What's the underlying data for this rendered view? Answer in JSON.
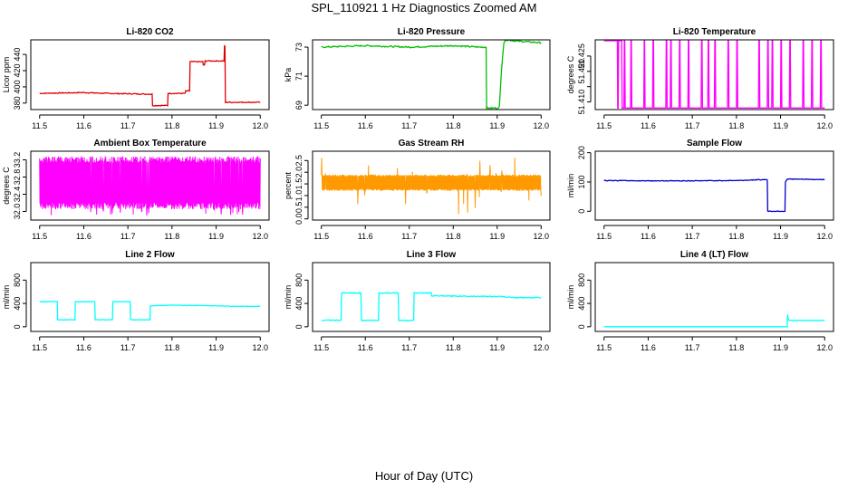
{
  "page": {
    "title": "SPL_110921 1 Hz Diagnostics Zoomed AM",
    "xlabel": "Hour of Day (UTC)"
  },
  "chart_data": [
    {
      "type": "line",
      "title": "Li-820 CO2",
      "ylabel": "Licor ppm",
      "color": "#e00000",
      "xlim": [
        11.48,
        12.02
      ],
      "ylim": [
        372,
        458
      ],
      "yticks": [
        380,
        400,
        420,
        440
      ],
      "noise": 0.6,
      "x": [
        11.5,
        11.55,
        11.6,
        11.65,
        11.7,
        11.755,
        11.756,
        11.79,
        11.791,
        11.83,
        11.831,
        11.84,
        11.841,
        11.87,
        11.871,
        11.874,
        11.875,
        11.918,
        11.919,
        11.92,
        11.921,
        11.96,
        12.0
      ],
      "y": [
        392,
        392.5,
        393,
        392,
        391.5,
        391,
        377,
        377,
        392,
        392,
        395,
        395,
        431,
        431,
        427,
        427,
        432,
        432,
        450,
        450,
        381,
        381,
        381
      ]
    },
    {
      "type": "line",
      "title": "Li-820 Pressure",
      "ylabel": "kPa",
      "color": "#00c000",
      "xlim": [
        11.48,
        12.02
      ],
      "ylim": [
        68.7,
        73.5
      ],
      "yticks": [
        69,
        71,
        73
      ],
      "noise": 0.05,
      "x": [
        11.5,
        11.6,
        11.7,
        11.8,
        11.86,
        11.875,
        11.876,
        11.9,
        11.905,
        11.91,
        11.915,
        11.92,
        11.95,
        12.0
      ],
      "y": [
        73.0,
        73.1,
        73.0,
        73.1,
        73.0,
        73.0,
        68.8,
        68.8,
        68.9,
        71.5,
        73.3,
        73.5,
        73.4,
        73.3
      ]
    },
    {
      "type": "line",
      "title": "Li-820 Temperature",
      "ylabel": "degrees C",
      "color": "#ff00ff",
      "xlim": [
        11.48,
        12.02
      ],
      "ylim": [
        51.4075,
        51.4303
      ],
      "yticks": [
        51.41,
        51.415,
        51.42,
        51.425
      ],
      "yticklabels": [
        "51.410",
        "",
        "51.420",
        "51.425"
      ],
      "noise": 0,
      "x": [
        11.5,
        11.53,
        11.531,
        11.532,
        11.533,
        11.54,
        11.541,
        11.545,
        11.546,
        11.547,
        11.548,
        11.56,
        11.561,
        11.562,
        11.563,
        11.59,
        11.591,
        11.592,
        11.593,
        11.61,
        11.611,
        11.612,
        11.613,
        11.64,
        11.641,
        11.642,
        11.643,
        11.65,
        11.651,
        11.652,
        11.653,
        11.67,
        11.671,
        11.672,
        11.673,
        11.69,
        11.691,
        11.692,
        11.693,
        11.72,
        11.721,
        11.722,
        11.723,
        11.735,
        11.736,
        11.737,
        11.738,
        11.75,
        11.751,
        11.752,
        11.753,
        11.78,
        11.781,
        11.782,
        11.783,
        11.8,
        11.801,
        11.802,
        11.803,
        11.85,
        11.851,
        11.852,
        11.853,
        11.87,
        11.871,
        11.872,
        11.873,
        11.88,
        11.881,
        11.882,
        11.883,
        11.9,
        11.901,
        11.902,
        11.903,
        11.92,
        11.921,
        11.922,
        11.923,
        11.95,
        11.951,
        11.952,
        11.953,
        11.97,
        11.971,
        11.972,
        11.973,
        11.99,
        11.991,
        11.992,
        11.993,
        12.0
      ],
      "y": [
        51.43,
        51.43,
        51.408,
        51.408,
        51.43,
        51.43,
        51.408,
        51.408,
        51.43,
        51.43,
        51.408,
        51.408,
        51.43,
        51.43,
        51.408,
        51.408,
        51.43,
        51.43,
        51.408,
        51.408,
        51.43,
        51.43,
        51.408,
        51.408,
        51.43,
        51.43,
        51.408,
        51.408,
        51.43,
        51.43,
        51.408,
        51.408,
        51.43,
        51.43,
        51.408,
        51.408,
        51.43,
        51.43,
        51.408,
        51.408,
        51.43,
        51.43,
        51.408,
        51.408,
        51.43,
        51.43,
        51.408,
        51.408,
        51.43,
        51.43,
        51.408,
        51.408,
        51.43,
        51.43,
        51.408,
        51.408,
        51.43,
        51.43,
        51.408,
        51.408,
        51.43,
        51.43,
        51.408,
        51.408,
        51.43,
        51.43,
        51.408,
        51.408,
        51.43,
        51.43,
        51.408,
        51.408,
        51.43,
        51.43,
        51.408,
        51.408,
        51.43,
        51.43,
        51.408,
        51.408,
        51.43,
        51.43,
        51.408,
        51.408,
        51.43,
        51.43,
        51.408,
        51.408,
        51.43,
        51.43,
        51.408,
        51.408
      ]
    },
    {
      "type": "line",
      "title": "Ambient Box Temperature",
      "ylabel": "degrees C",
      "color": "#ff00ff",
      "xlim": [
        11.48,
        12.02
      ],
      "ylim": [
        31.8,
        33.4
      ],
      "yticks": [
        32.0,
        32.4,
        32.8,
        33.2
      ],
      "yticklabels": [
        "32.0",
        "32.4",
        "32.8",
        "33.2"
      ],
      "noise": 0,
      "band": {
        "lo": 32.05,
        "hi": 33.28,
        "extra_lo": 31.9
      }
    },
    {
      "type": "line",
      "title": "Gas Stream RH",
      "ylabel": "percent",
      "color": "#ff9900",
      "xlim": [
        11.48,
        12.02
      ],
      "ylim": [
        -0.05,
        2.9
      ],
      "yticks": [
        0.0,
        0.5,
        1.0,
        1.5,
        2.0,
        2.5
      ],
      "yticklabels": [
        "0.0",
        "0.5",
        "1.0",
        "1.5",
        "2.0",
        "2.5"
      ],
      "noise": 0,
      "band": {
        "lo": 1.2,
        "hi": 1.9,
        "extra_lo": 0.2,
        "extra_hi": 2.8
      }
    },
    {
      "type": "line",
      "title": "Sample Flow",
      "ylabel": "ml/min",
      "color": "#0000cc",
      "xlim": [
        11.48,
        12.02
      ],
      "ylim": [
        -30,
        205
      ],
      "yticks": [
        0,
        100,
        200
      ],
      "noise": 1.2,
      "x": [
        11.5,
        11.6,
        11.7,
        11.8,
        11.86,
        11.87,
        11.871,
        11.91,
        11.911,
        11.915,
        12.0
      ],
      "y": [
        105,
        104,
        104,
        105,
        108,
        108,
        0,
        0,
        100,
        110,
        108
      ]
    },
    {
      "type": "line",
      "title": "Line 2 Flow",
      "ylabel": "ml/min",
      "color": "#00ffff",
      "xlim": [
        11.48,
        12.02
      ],
      "ylim": [
        -80,
        1100
      ],
      "yticks": [
        0,
        400,
        800
      ],
      "noise": 4,
      "x": [
        11.5,
        11.54,
        11.541,
        11.58,
        11.581,
        11.625,
        11.626,
        11.665,
        11.666,
        11.705,
        11.706,
        11.75,
        11.751,
        11.8,
        11.9,
        11.94,
        12.0
      ],
      "y": [
        430,
        430,
        120,
        120,
        430,
        430,
        120,
        120,
        430,
        430,
        120,
        120,
        360,
        370,
        360,
        350,
        350
      ]
    },
    {
      "type": "line",
      "title": "Line 3 Flow",
      "ylabel": "ml/min",
      "color": "#00ffff",
      "xlim": [
        11.48,
        12.02
      ],
      "ylim": [
        -80,
        1100
      ],
      "yticks": [
        0,
        400,
        800
      ],
      "noise": 8,
      "x": [
        11.5,
        11.545,
        11.546,
        11.59,
        11.591,
        11.63,
        11.631,
        11.675,
        11.676,
        11.71,
        11.711,
        11.75,
        11.751,
        11.9,
        11.94,
        12.0
      ],
      "y": [
        110,
        110,
        580,
        580,
        110,
        110,
        580,
        580,
        110,
        110,
        580,
        580,
        530,
        520,
        500,
        500
      ]
    },
    {
      "type": "line",
      "title": "Line 4 (LT) Flow",
      "ylabel": "ml/min",
      "color": "#00ffff",
      "xlim": [
        11.48,
        12.02
      ],
      "ylim": [
        -80,
        1100
      ],
      "yticks": [
        0,
        400,
        800
      ],
      "noise": 0,
      "x": [
        11.5,
        11.6,
        11.7,
        11.8,
        11.9,
        11.915,
        11.916,
        11.918,
        11.92,
        12.0
      ],
      "y": [
        0,
        0,
        0,
        0,
        0,
        0,
        210,
        120,
        110,
        110
      ]
    }
  ],
  "shared_x_ticks": [
    11.5,
    11.6,
    11.7,
    11.8,
    11.9,
    12.0
  ],
  "shared_x_ticklabels": [
    "11.5",
    "11.6",
    "11.7",
    "11.8",
    "11.9",
    "12.0"
  ]
}
